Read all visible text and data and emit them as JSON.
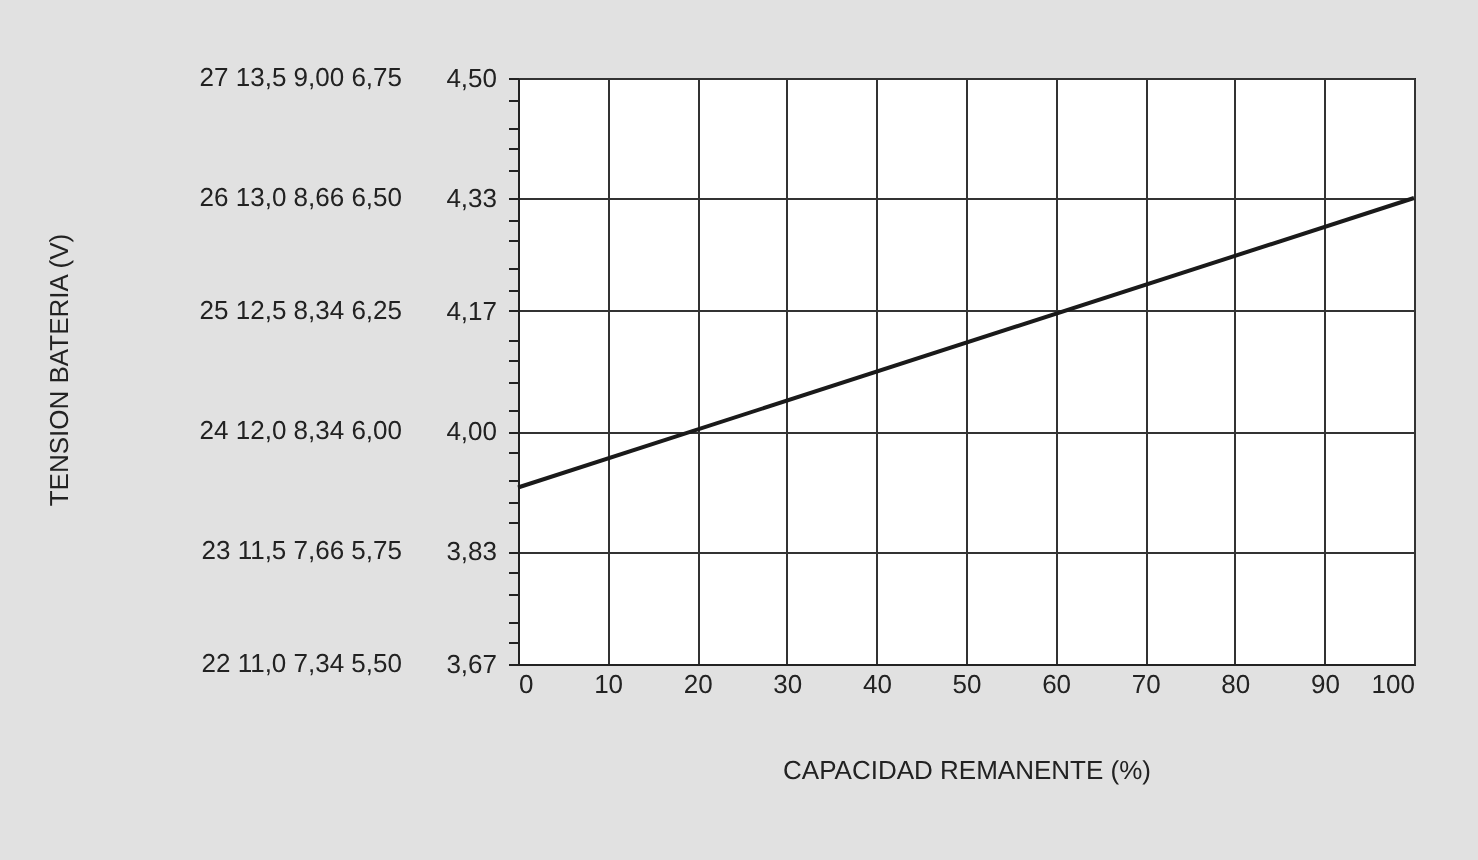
{
  "chart_data": {
    "type": "line",
    "xlabel": "CAPACIDAD REMANENTE (%)",
    "x": [
      0,
      100
    ],
    "series": [
      {
        "color": "#1a1a1a",
        "values": [
          3.92,
          4.33
        ]
      }
    ],
    "xlim": [
      0,
      100
    ],
    "xticks": [
      0,
      10,
      20,
      30,
      40,
      50,
      60,
      70,
      80,
      90,
      100
    ],
    "ylim": [
      3.67,
      4.5
    ],
    "yticks": [
      {
        "value": 3.67,
        "label": "3,67"
      },
      {
        "value": 3.7,
        "label": null
      },
      {
        "value": 3.73,
        "label": null
      },
      {
        "value": 3.77,
        "label": null
      },
      {
        "value": 3.8,
        "label": null
      },
      {
        "value": 3.83,
        "label": "3,83"
      },
      {
        "value": 3.87,
        "label": null
      },
      {
        "value": 3.9,
        "label": null
      },
      {
        "value": 3.93,
        "label": null
      },
      {
        "value": 3.97,
        "label": null
      },
      {
        "value": 4,
        "label": "4,00"
      },
      {
        "value": 4.03,
        "label": null
      },
      {
        "value": 4.07,
        "label": null
      },
      {
        "value": 4.1,
        "label": null
      },
      {
        "value": 4.13,
        "label": null
      },
      {
        "value": 4.17,
        "label": "4,17"
      },
      {
        "value": 4.2,
        "label": null
      },
      {
        "value": 4.23,
        "label": null
      },
      {
        "value": 4.27,
        "label": null
      },
      {
        "value": 4.3,
        "label": null
      },
      {
        "value": 4.33,
        "label": "4,33"
      },
      {
        "value": 4.37,
        "label": null
      },
      {
        "value": 4.4,
        "label": null
      },
      {
        "value": 4.43,
        "label": null
      },
      {
        "value": 4.47,
        "label": null
      },
      {
        "value": 4.5,
        "label": "4,50"
      }
    ],
    "annotations": [
      "TENSION BATERIA (V)",
      "27 13,5 9,00 6,75",
      "26 13,0 8,66 6,50",
      "25 12,5 8,34 6,25",
      "24 12,0 8,34 6,00",
      "23 11,5 7,66 5,75",
      "22 11,0 7,34 5,50"
    ],
    "grid": true
  }
}
